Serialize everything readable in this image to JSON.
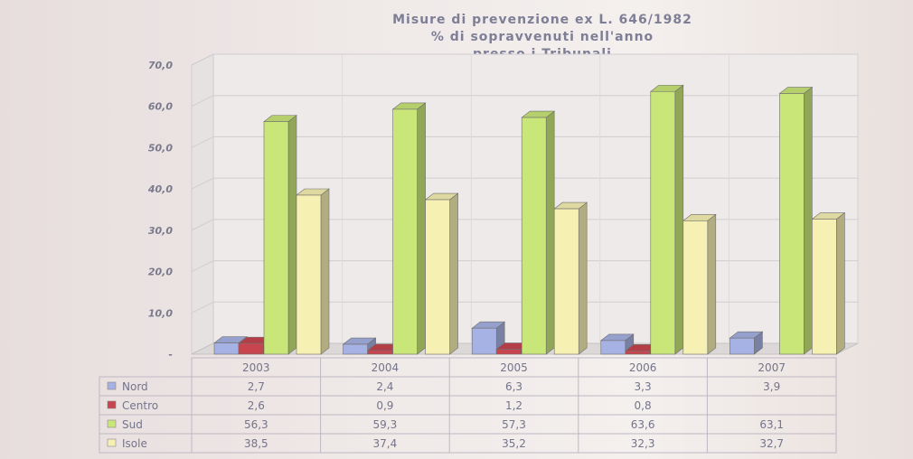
{
  "chart_data": {
    "type": "bar",
    "title": [
      "Misure di prevenzione ex L. 646/1982",
      "% di sopravvenuti nell'anno",
      "presso i Tribunali"
    ],
    "categories": [
      "2003",
      "2004",
      "2005",
      "2006",
      "2007"
    ],
    "ylim": [
      0,
      70
    ],
    "yticks": [
      "70,0",
      "60,0",
      "50,0",
      "40,0",
      "30,0",
      "20,0",
      "10,0",
      "-"
    ],
    "grid": true,
    "legend": "table-below",
    "series": [
      {
        "name": "Nord",
        "color": "#a6b2e3",
        "values": [
          2.7,
          2.4,
          6.3,
          3.3,
          3.9
        ],
        "labels": [
          "2,7",
          "2,4",
          "6,3",
          "3,3",
          "3,9"
        ]
      },
      {
        "name": "Centro",
        "color": "#c8454f",
        "values": [
          2.6,
          0.9,
          1.2,
          0.8,
          null
        ],
        "labels": [
          "2,6",
          "0,9",
          "1,2",
          "0,8",
          ""
        ]
      },
      {
        "name": "Sud",
        "color": "#c9e678",
        "values": [
          56.3,
          59.3,
          57.3,
          63.6,
          63.1
        ],
        "labels": [
          "56,3",
          "59,3",
          "57,3",
          "63,6",
          "63,1"
        ]
      },
      {
        "name": "Isole",
        "color": "#f7f0b3",
        "values": [
          38.5,
          37.4,
          35.2,
          32.3,
          32.7
        ],
        "labels": [
          "38,5",
          "37,4",
          "35,2",
          "32,3",
          "32,7"
        ]
      }
    ]
  }
}
